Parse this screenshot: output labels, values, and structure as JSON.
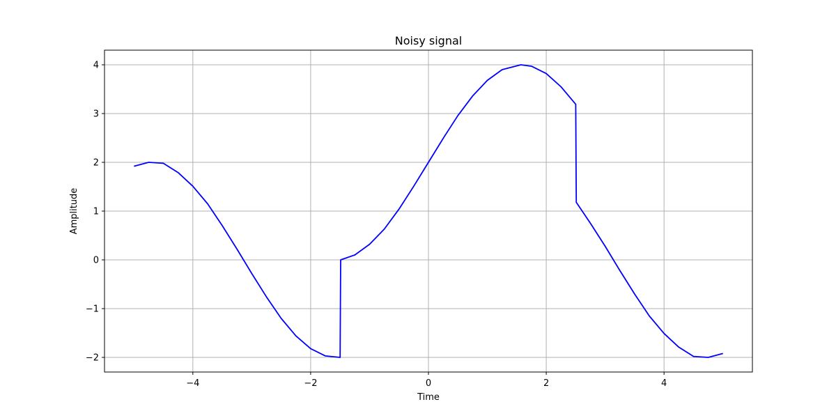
{
  "chart_data": {
    "type": "line",
    "title": "Noisy signal",
    "xlabel": "Time",
    "ylabel": "Amplitude",
    "xlim": [
      -5.5,
      5.5
    ],
    "ylim": [
      -2.3,
      4.3
    ],
    "xticks": [
      -4,
      -2,
      0,
      2,
      4
    ],
    "yticks": [
      -2,
      -1,
      0,
      1,
      2,
      3,
      4
    ],
    "xtick_labels": [
      "−4",
      "−2",
      "0",
      "2",
      "4"
    ],
    "ytick_labels": [
      "−2",
      "−1",
      "0",
      "1",
      "2",
      "3",
      "4"
    ],
    "grid": true,
    "series": [
      {
        "color": "#0000ff",
        "x": [
          -5.0,
          -4.75,
          -4.5,
          -4.25,
          -4.0,
          -3.75,
          -3.5,
          -3.25,
          -3.0,
          -2.75,
          -2.5,
          -2.25,
          -2.0,
          -1.75,
          -1.5,
          -1.49,
          -1.25,
          -1.0,
          -0.75,
          -0.5,
          -0.25,
          0.0,
          0.25,
          0.5,
          0.75,
          1.0,
          1.25,
          1.57,
          1.75,
          2.0,
          2.25,
          2.5,
          2.51,
          2.75,
          3.0,
          3.25,
          3.5,
          3.75,
          4.0,
          4.25,
          4.5,
          4.75,
          5.0
        ],
        "y": [
          1.92,
          2.0,
          1.98,
          1.79,
          1.51,
          1.15,
          0.7,
          0.22,
          -0.28,
          -0.76,
          -1.2,
          -1.56,
          -1.82,
          -1.97,
          -2.0,
          0.0,
          0.1,
          0.32,
          0.63,
          1.04,
          1.51,
          2.0,
          2.49,
          2.96,
          3.36,
          3.68,
          3.9,
          4.0,
          3.97,
          3.82,
          3.55,
          3.19,
          1.18,
          0.75,
          0.28,
          -0.22,
          -0.7,
          -1.15,
          -1.51,
          -1.79,
          -1.98,
          -2.0,
          -1.92
        ]
      }
    ]
  }
}
